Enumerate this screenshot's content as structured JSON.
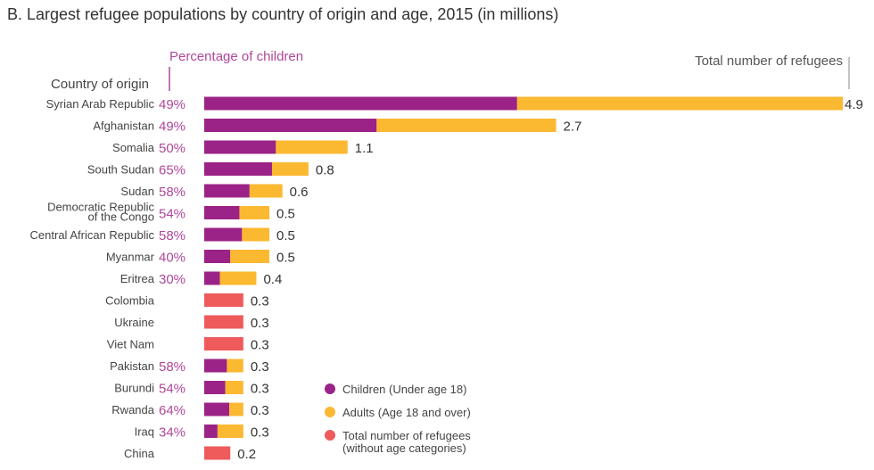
{
  "chart_data": {
    "type": "bar",
    "orientation": "horizontal",
    "stacked": true,
    "title": "B. Largest refugee populations by country of origin and age, 2015 (in millions)",
    "category_header": "Country of origin",
    "percent_header": "Percentage of children",
    "total_header": "Total number of refugees",
    "categories": [
      "Syrian Arab Republic",
      "Afghanistan",
      "Somalia",
      "South Sudan",
      "Sudan",
      "Democratic Republic of the Congo",
      "Central African Republic",
      "Myanmar",
      "Eritrea",
      "Colombia",
      "Ukraine",
      "Viet Nam",
      "Pakistan",
      "Burundi",
      "Rwanda",
      "Iraq",
      "China"
    ],
    "category_lines": [
      [
        "Syrian Arab Republic"
      ],
      [
        "Afghanistan"
      ],
      [
        "Somalia"
      ],
      [
        "South Sudan"
      ],
      [
        "Sudan"
      ],
      [
        "Democratic Republic",
        "of the Congo"
      ],
      [
        "Central African Republic"
      ],
      [
        "Myanmar"
      ],
      [
        "Eritrea"
      ],
      [
        "Colombia"
      ],
      [
        "Ukraine"
      ],
      [
        "Viet Nam"
      ],
      [
        "Pakistan"
      ],
      [
        "Burundi"
      ],
      [
        "Rwanda"
      ],
      [
        "Iraq"
      ],
      [
        "China"
      ]
    ],
    "totals": [
      4.9,
      2.7,
      1.1,
      0.8,
      0.6,
      0.5,
      0.5,
      0.5,
      0.4,
      0.3,
      0.3,
      0.3,
      0.3,
      0.3,
      0.3,
      0.3,
      0.2
    ],
    "children_percent": [
      49,
      49,
      50,
      65,
      58,
      54,
      58,
      40,
      30,
      null,
      null,
      null,
      58,
      54,
      64,
      34,
      null
    ],
    "series": [
      {
        "name": "Children (Under age 18)",
        "color": "#9b2387"
      },
      {
        "name": "Adults (Age 18 and over)",
        "color": "#fbb831"
      },
      {
        "name": "Total number of refugees (without age categories)",
        "lines": [
          "Total number of refugees",
          "(without age categories)"
        ],
        "color": "#ef5a5a"
      }
    ],
    "percent_color": "#b0479a",
    "xlim": [
      0,
      4.9
    ],
    "grid": false,
    "legend_position": "bottom-right"
  }
}
